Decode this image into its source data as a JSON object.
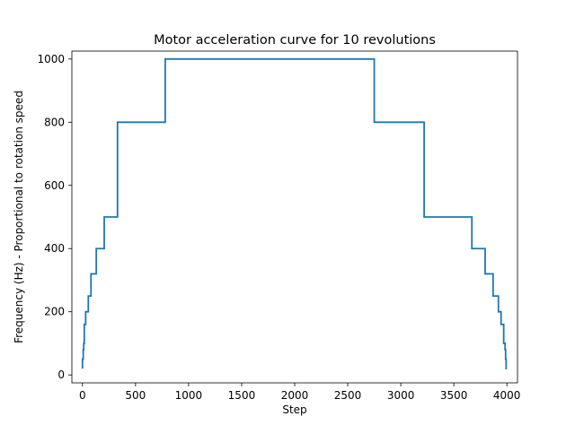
{
  "chart_data": {
    "type": "line",
    "title": "Motor acceleration curve for 10 revolutions",
    "xlabel": "Step",
    "ylabel": "Frequency (Hz) - Proportional to rotation speed",
    "xlim": [
      -100,
      4100
    ],
    "ylim": [
      -25,
      1025
    ],
    "xticks": [
      0,
      500,
      1000,
      1500,
      2000,
      2500,
      3000,
      3500,
      4000
    ],
    "yticks": [
      0,
      200,
      400,
      600,
      800,
      1000
    ],
    "grid": false,
    "series": [
      {
        "color": "#1f77b4",
        "step": true,
        "points": [
          [
            0,
            20
          ],
          [
            0,
            50
          ],
          [
            7,
            50
          ],
          [
            7,
            80
          ],
          [
            12,
            80
          ],
          [
            12,
            100
          ],
          [
            17,
            100
          ],
          [
            17,
            160
          ],
          [
            30,
            160
          ],
          [
            30,
            200
          ],
          [
            55,
            200
          ],
          [
            55,
            250
          ],
          [
            80,
            250
          ],
          [
            80,
            320
          ],
          [
            130,
            320
          ],
          [
            130,
            400
          ],
          [
            205,
            400
          ],
          [
            205,
            500
          ],
          [
            330,
            500
          ],
          [
            330,
            800
          ],
          [
            780,
            800
          ],
          [
            780,
            1000
          ],
          [
            1250,
            1000
          ],
          [
            2750,
            1000
          ],
          [
            2750,
            800
          ],
          [
            3220,
            800
          ],
          [
            3220,
            500
          ],
          [
            3670,
            500
          ],
          [
            3670,
            400
          ],
          [
            3795,
            400
          ],
          [
            3795,
            320
          ],
          [
            3870,
            320
          ],
          [
            3870,
            250
          ],
          [
            3920,
            250
          ],
          [
            3920,
            200
          ],
          [
            3945,
            200
          ],
          [
            3945,
            160
          ],
          [
            3970,
            160
          ],
          [
            3970,
            100
          ],
          [
            3983,
            100
          ],
          [
            3983,
            80
          ],
          [
            3988,
            80
          ],
          [
            3988,
            50
          ],
          [
            3993,
            50
          ],
          [
            3993,
            20
          ],
          [
            4000,
            20
          ]
        ]
      }
    ]
  }
}
